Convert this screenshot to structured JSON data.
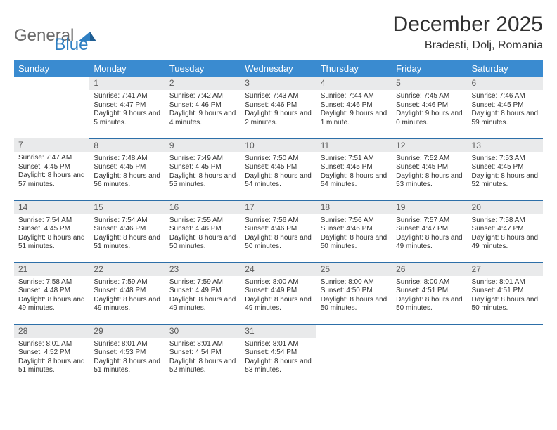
{
  "brand": {
    "word1": "General",
    "word2": "Blue",
    "color1": "#6a6a6a",
    "color2": "#2f7fc2"
  },
  "title": "December 2025",
  "location": "Bradesti, Dolj, Romania",
  "header_bg": "#3a8bd0",
  "daynum_bg": "#e9eaeb",
  "row_border": "#2d6fa8",
  "days": [
    "Sunday",
    "Monday",
    "Tuesday",
    "Wednesday",
    "Thursday",
    "Friday",
    "Saturday"
  ],
  "weeks": [
    [
      null,
      {
        "n": "1",
        "sr": "7:41 AM",
        "ss": "4:47 PM",
        "dl": "9 hours and 5 minutes."
      },
      {
        "n": "2",
        "sr": "7:42 AM",
        "ss": "4:46 PM",
        "dl": "9 hours and 4 minutes."
      },
      {
        "n": "3",
        "sr": "7:43 AM",
        "ss": "4:46 PM",
        "dl": "9 hours and 2 minutes."
      },
      {
        "n": "4",
        "sr": "7:44 AM",
        "ss": "4:46 PM",
        "dl": "9 hours and 1 minute."
      },
      {
        "n": "5",
        "sr": "7:45 AM",
        "ss": "4:46 PM",
        "dl": "9 hours and 0 minutes."
      },
      {
        "n": "6",
        "sr": "7:46 AM",
        "ss": "4:45 PM",
        "dl": "8 hours and 59 minutes."
      }
    ],
    [
      {
        "n": "7",
        "sr": "7:47 AM",
        "ss": "4:45 PM",
        "dl": "8 hours and 57 minutes."
      },
      {
        "n": "8",
        "sr": "7:48 AM",
        "ss": "4:45 PM",
        "dl": "8 hours and 56 minutes."
      },
      {
        "n": "9",
        "sr": "7:49 AM",
        "ss": "4:45 PM",
        "dl": "8 hours and 55 minutes."
      },
      {
        "n": "10",
        "sr": "7:50 AM",
        "ss": "4:45 PM",
        "dl": "8 hours and 54 minutes."
      },
      {
        "n": "11",
        "sr": "7:51 AM",
        "ss": "4:45 PM",
        "dl": "8 hours and 54 minutes."
      },
      {
        "n": "12",
        "sr": "7:52 AM",
        "ss": "4:45 PM",
        "dl": "8 hours and 53 minutes."
      },
      {
        "n": "13",
        "sr": "7:53 AM",
        "ss": "4:45 PM",
        "dl": "8 hours and 52 minutes."
      }
    ],
    [
      {
        "n": "14",
        "sr": "7:54 AM",
        "ss": "4:45 PM",
        "dl": "8 hours and 51 minutes."
      },
      {
        "n": "15",
        "sr": "7:54 AM",
        "ss": "4:46 PM",
        "dl": "8 hours and 51 minutes."
      },
      {
        "n": "16",
        "sr": "7:55 AM",
        "ss": "4:46 PM",
        "dl": "8 hours and 50 minutes."
      },
      {
        "n": "17",
        "sr": "7:56 AM",
        "ss": "4:46 PM",
        "dl": "8 hours and 50 minutes."
      },
      {
        "n": "18",
        "sr": "7:56 AM",
        "ss": "4:46 PM",
        "dl": "8 hours and 50 minutes."
      },
      {
        "n": "19",
        "sr": "7:57 AM",
        "ss": "4:47 PM",
        "dl": "8 hours and 49 minutes."
      },
      {
        "n": "20",
        "sr": "7:58 AM",
        "ss": "4:47 PM",
        "dl": "8 hours and 49 minutes."
      }
    ],
    [
      {
        "n": "21",
        "sr": "7:58 AM",
        "ss": "4:48 PM",
        "dl": "8 hours and 49 minutes."
      },
      {
        "n": "22",
        "sr": "7:59 AM",
        "ss": "4:48 PM",
        "dl": "8 hours and 49 minutes."
      },
      {
        "n": "23",
        "sr": "7:59 AM",
        "ss": "4:49 PM",
        "dl": "8 hours and 49 minutes."
      },
      {
        "n": "24",
        "sr": "8:00 AM",
        "ss": "4:49 PM",
        "dl": "8 hours and 49 minutes."
      },
      {
        "n": "25",
        "sr": "8:00 AM",
        "ss": "4:50 PM",
        "dl": "8 hours and 50 minutes."
      },
      {
        "n": "26",
        "sr": "8:00 AM",
        "ss": "4:51 PM",
        "dl": "8 hours and 50 minutes."
      },
      {
        "n": "27",
        "sr": "8:01 AM",
        "ss": "4:51 PM",
        "dl": "8 hours and 50 minutes."
      }
    ],
    [
      {
        "n": "28",
        "sr": "8:01 AM",
        "ss": "4:52 PM",
        "dl": "8 hours and 51 minutes."
      },
      {
        "n": "29",
        "sr": "8:01 AM",
        "ss": "4:53 PM",
        "dl": "8 hours and 51 minutes."
      },
      {
        "n": "30",
        "sr": "8:01 AM",
        "ss": "4:54 PM",
        "dl": "8 hours and 52 minutes."
      },
      {
        "n": "31",
        "sr": "8:01 AM",
        "ss": "4:54 PM",
        "dl": "8 hours and 53 minutes."
      },
      null,
      null,
      null
    ]
  ],
  "labels": {
    "sunrise": "Sunrise:",
    "sunset": "Sunset:",
    "daylight": "Daylight:"
  }
}
